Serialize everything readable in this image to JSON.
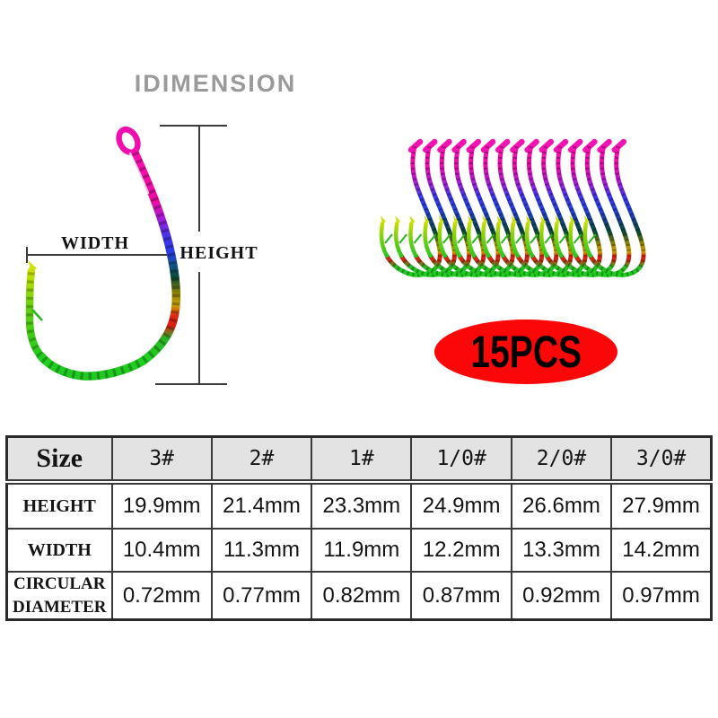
{
  "title": "IDIMENSION",
  "diagram": {
    "width_label": "WIDTH",
    "height_label": "HEIGHT"
  },
  "badge": {
    "label": "15PCS",
    "bg_color": "#fa0707",
    "text_color": "#000000"
  },
  "hooks": {
    "count": 15
  },
  "table": {
    "columns": [
      "Size",
      "3#",
      "2#",
      "1#",
      "1/0#",
      "2/0#",
      "3/0#"
    ],
    "rows": [
      {
        "label_lines": [
          "HEIGHT"
        ],
        "values": [
          "19.9mm",
          "21.4mm",
          "23.3mm",
          "24.9mm",
          "26.6mm",
          "27.9mm"
        ]
      },
      {
        "label_lines": [
          "WIDTH"
        ],
        "values": [
          "10.4mm",
          "11.3mm",
          "11.9mm",
          "12.2mm",
          "13.3mm",
          "14.2mm"
        ]
      },
      {
        "label_lines": [
          "CIRCULAR",
          "DIAMETER"
        ],
        "values": [
          "0.72mm",
          "0.77mm",
          "0.82mm",
          "0.87mm",
          "0.92mm",
          "0.97mm"
        ]
      }
    ]
  },
  "colors": {
    "badge_red": "#fa0707",
    "title_gray": "#9a9a9a",
    "table_border": "#3a3a3a",
    "header_bg": "#e3e3e3",
    "hook_magenta": "#ee0fa6",
    "hook_purple": "#8c23da",
    "hook_blue": "#2b3fe6",
    "hook_gold": "#c8a206",
    "hook_red": "#de1c14",
    "hook_green": "#1fd11f"
  }
}
